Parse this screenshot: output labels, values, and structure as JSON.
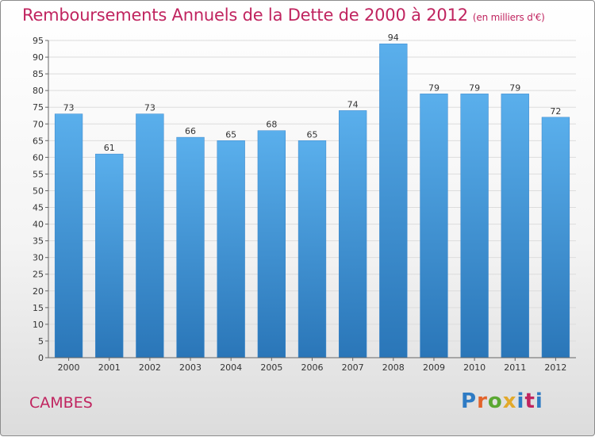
{
  "title": "Remboursements Annuels de la Dette de 2000 à 2012",
  "unit": "(en milliers d'€)",
  "place": "CAMBES",
  "logo": {
    "text": "Proxiti",
    "letters": [
      "P",
      "r",
      "o",
      "x",
      "i",
      "t",
      "i"
    ],
    "colors": [
      "#2e7bc4",
      "#e2632b",
      "#5aa832",
      "#e2a92b",
      "#2e7bc4",
      "#c0245f",
      "#2e7bc4"
    ]
  },
  "colors": {
    "bar": "#4a9ee0",
    "title": "#c0245f",
    "grid": "#dcdcdc"
  },
  "chart_data": {
    "type": "bar",
    "title": "Remboursements Annuels de la Dette de 2000 à 2012",
    "categories": [
      "2000",
      "2001",
      "2002",
      "2003",
      "2004",
      "2005",
      "2006",
      "2007",
      "2008",
      "2009",
      "2010",
      "2011",
      "2012"
    ],
    "values": [
      73,
      61,
      73,
      66,
      65,
      68,
      65,
      74,
      94,
      79,
      79,
      79,
      72
    ],
    "ylim": [
      0,
      95
    ],
    "yticks": [
      0,
      5,
      10,
      15,
      20,
      25,
      30,
      35,
      40,
      45,
      50,
      55,
      60,
      65,
      70,
      75,
      80,
      85,
      90,
      95
    ],
    "grid": true,
    "xlabel": "",
    "ylabel": ""
  }
}
